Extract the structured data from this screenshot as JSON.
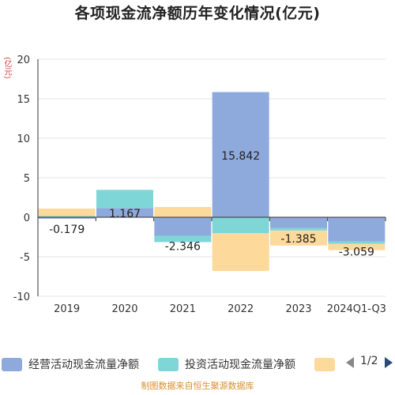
{
  "title": "各项现金流净额历年变化情况(亿元)",
  "unit_label": "(亿元)",
  "source": "制图数据来自恒生聚源数据库",
  "legend": {
    "items": [
      {
        "label": "经营活动现金流量净额",
        "color": "#8eaadc"
      },
      {
        "label": "投资活动现金流量净额",
        "color": "#7fd6d6"
      },
      {
        "label": "",
        "color": "#fdd99b"
      }
    ],
    "page": "1/2",
    "prev_icon": "triangle-left-icon",
    "next_icon": "triangle-right-icon"
  },
  "chart_data": {
    "type": "bar",
    "stacked": true,
    "categories": [
      "2019",
      "2020",
      "2021",
      "2022",
      "2023",
      "2024Q1-Q3"
    ],
    "series": [
      {
        "name": "经营活动现金流量净额",
        "color": "#8eaadc",
        "values": [
          -0.179,
          1.167,
          -2.346,
          15.842,
          -1.385,
          -3.059
        ]
      },
      {
        "name": "投资活动现金流量净额",
        "color": "#7fd6d6",
        "values": [
          0.15,
          2.3,
          -0.8,
          -2.0,
          -0.3,
          -0.3
        ]
      },
      {
        "name": "",
        "color": "#fdd99b",
        "values": [
          0.95,
          0,
          1.3,
          -4.8,
          -1.9,
          -0.8
        ]
      }
    ],
    "data_labels": [
      "-0.179",
      "1.167",
      "-2.346",
      "15.842",
      "-1.385",
      "-3.059"
    ],
    "ylim": [
      -10,
      20
    ],
    "yticks": [
      -10,
      -5,
      0,
      5,
      10,
      15,
      20
    ],
    "grid": true
  }
}
